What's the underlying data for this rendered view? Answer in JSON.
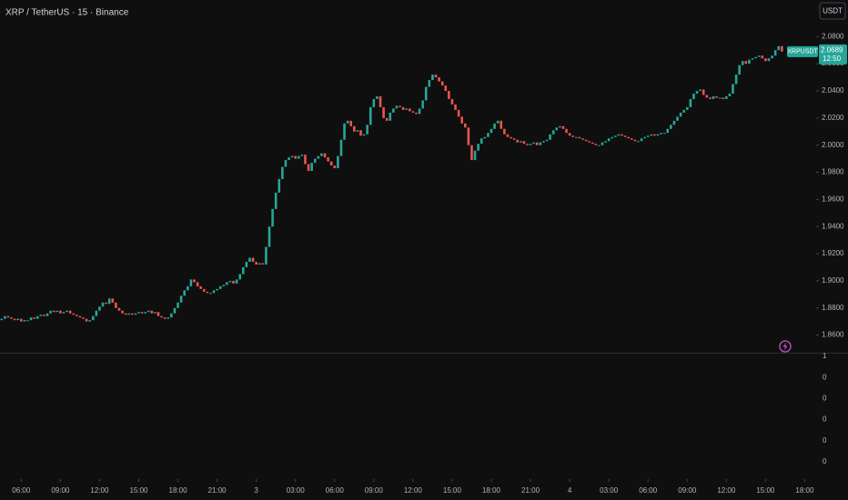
{
  "chart_data": {
    "type": "candlestick",
    "title": "XRP / TetherUS · 15 · Binance",
    "currency_button": "USDT",
    "symbol": "XRPUSDT",
    "last_price": 2.0689,
    "countdown": "12:50",
    "up_color": "#26a69a",
    "down_color": "#ef5350",
    "xlim": [
      -0.5,
      249.5
    ],
    "xticks": [
      {
        "value": 6,
        "label": "06:00"
      },
      {
        "value": 18,
        "label": "09:00"
      },
      {
        "value": 30,
        "label": "12:00"
      },
      {
        "value": 42,
        "label": "15:00"
      },
      {
        "value": 54,
        "label": "18:00"
      },
      {
        "value": 66,
        "label": "21:00"
      },
      {
        "value": 78,
        "label": "3"
      },
      {
        "value": 90,
        "label": "03:00"
      },
      {
        "value": 102,
        "label": "06:00"
      },
      {
        "value": 114,
        "label": "09:00"
      },
      {
        "value": 126,
        "label": "12:00"
      },
      {
        "value": 138,
        "label": "15:00"
      },
      {
        "value": 150,
        "label": "18:00"
      },
      {
        "value": 162,
        "label": "21:00"
      },
      {
        "value": 174,
        "label": "4"
      },
      {
        "value": 186,
        "label": "03:00"
      },
      {
        "value": 198,
        "label": "06:00"
      },
      {
        "value": 210,
        "label": "09:00"
      },
      {
        "value": 222,
        "label": "12:00"
      },
      {
        "value": 234,
        "label": "15:00"
      },
      {
        "value": 246,
        "label": "18:00"
      }
    ],
    "ylim": [
      1.847,
      2.107
    ],
    "yticks": [
      {
        "value": 2.08,
        "label": "2.0800"
      },
      {
        "value": 2.06,
        "label": "2.0600"
      },
      {
        "value": 2.04,
        "label": "2.0400"
      },
      {
        "value": 2.02,
        "label": "2.0200"
      },
      {
        "value": 2.0,
        "label": "2.0000"
      },
      {
        "value": 1.98,
        "label": "1.9800"
      },
      {
        "value": 1.96,
        "label": "1.9600"
      },
      {
        "value": 1.94,
        "label": "1.9400"
      },
      {
        "value": 1.92,
        "label": "1.9200"
      },
      {
        "value": 1.9,
        "label": "1.9000"
      },
      {
        "value": 1.88,
        "label": "1.8800"
      },
      {
        "value": 1.86,
        "label": "1.8600"
      }
    ],
    "open": [
      1.871,
      1.872,
      1.874,
      1.873,
      1.872,
      1.871,
      1.872,
      1.87,
      1.871,
      1.871,
      1.873,
      1.872,
      1.874,
      1.875,
      1.874,
      1.876,
      1.878,
      1.877,
      1.878,
      1.876,
      1.877,
      1.878,
      1.876,
      1.875,
      1.874,
      1.873,
      1.872,
      1.87,
      1.871,
      1.874,
      1.878,
      1.881,
      1.884,
      1.883,
      1.887,
      1.884,
      1.88,
      1.878,
      1.876,
      1.875,
      1.876,
      1.875,
      1.876,
      1.877,
      1.876,
      1.877,
      1.878,
      1.876,
      1.877,
      1.874,
      1.873,
      1.872,
      1.873,
      1.876,
      1.88,
      1.884,
      1.889,
      1.893,
      1.896,
      1.901,
      1.899,
      1.896,
      1.894,
      1.892,
      1.891,
      1.891,
      1.893,
      1.894,
      1.896,
      1.897,
      1.899,
      1.9,
      1.898,
      1.901,
      1.905,
      1.91,
      1.914,
      1.917,
      1.914,
      1.912,
      1.913,
      1.912,
      1.925,
      1.94,
      1.953,
      1.965,
      1.975,
      1.984,
      1.989,
      1.991,
      1.992,
      1.99,
      1.992,
      1.993,
      1.986,
      1.981,
      1.987,
      1.99,
      1.992,
      1.994,
      1.991,
      1.988,
      1.985,
      1.983,
      1.992,
      2.004,
      2.016,
      2.018,
      2.014,
      2.01,
      2.011,
      2.007,
      2.008,
      2.015,
      2.028,
      2.034,
      2.036,
      2.028,
      2.02,
      2.018,
      2.024,
      2.027,
      2.029,
      2.028,
      2.026,
      2.027,
      2.025,
      2.024,
      2.023,
      2.027,
      2.033,
      2.043,
      2.048,
      2.052,
      2.05,
      2.047,
      2.044,
      2.04,
      2.034,
      2.03,
      2.026,
      2.021,
      2.016,
      2.013,
      2.0,
      1.989,
      1.996,
      2.001,
      2.005,
      2.006,
      2.009,
      2.012,
      2.016,
      2.018,
      2.012,
      2.008,
      2.006,
      2.005,
      2.004,
      2.002,
      2.003,
      2.001,
      2.0,
      2.001,
      2.002,
      2.0,
      2.002,
      2.003,
      2.004,
      2.008,
      2.011,
      2.013,
      2.014,
      2.012,
      2.009,
      2.007,
      2.006,
      2.006,
      2.005,
      2.004,
      2.003,
      2.002,
      2.001,
      2.0,
      2.0,
      2.002,
      2.003,
      2.005,
      2.006,
      2.007,
      2.008,
      2.007,
      2.006,
      2.005,
      2.004,
      2.003,
      2.003,
      2.005,
      2.006,
      2.007,
      2.008,
      2.007,
      2.008,
      2.009,
      2.009,
      2.012,
      2.015,
      2.018,
      2.021,
      2.024,
      2.026,
      2.028,
      2.034,
      2.038,
      2.04,
      2.041,
      2.037,
      2.035,
      2.034,
      2.036,
      2.035,
      2.035,
      2.034,
      2.036,
      2.038,
      2.045,
      2.052,
      2.059,
      2.062,
      2.06,
      2.063,
      2.064,
      2.065,
      2.066,
      2.064,
      2.062,
      2.064,
      2.066,
      2.07,
      2.073
    ],
    "close": [
      1.872,
      1.874,
      1.873,
      1.872,
      1.871,
      1.872,
      1.87,
      1.871,
      1.871,
      1.873,
      1.872,
      1.874,
      1.875,
      1.874,
      1.876,
      1.878,
      1.877,
      1.878,
      1.876,
      1.877,
      1.878,
      1.876,
      1.875,
      1.874,
      1.873,
      1.872,
      1.87,
      1.871,
      1.874,
      1.878,
      1.881,
      1.884,
      1.883,
      1.887,
      1.884,
      1.88,
      1.878,
      1.876,
      1.875,
      1.876,
      1.875,
      1.876,
      1.877,
      1.876,
      1.877,
      1.878,
      1.876,
      1.877,
      1.874,
      1.873,
      1.872,
      1.873,
      1.876,
      1.88,
      1.884,
      1.889,
      1.893,
      1.896,
      1.901,
      1.899,
      1.896,
      1.894,
      1.892,
      1.891,
      1.891,
      1.893,
      1.894,
      1.896,
      1.897,
      1.899,
      1.9,
      1.898,
      1.901,
      1.905,
      1.91,
      1.914,
      1.917,
      1.914,
      1.912,
      1.913,
      1.912,
      1.925,
      1.94,
      1.953,
      1.965,
      1.975,
      1.984,
      1.989,
      1.991,
      1.992,
      1.99,
      1.992,
      1.993,
      1.986,
      1.981,
      1.987,
      1.99,
      1.992,
      1.994,
      1.991,
      1.988,
      1.985,
      1.983,
      1.992,
      2.004,
      2.016,
      2.018,
      2.014,
      2.01,
      2.011,
      2.007,
      2.008,
      2.015,
      2.028,
      2.034,
      2.036,
      2.028,
      2.02,
      2.018,
      2.024,
      2.027,
      2.029,
      2.028,
      2.026,
      2.027,
      2.025,
      2.024,
      2.023,
      2.027,
      2.033,
      2.043,
      2.048,
      2.052,
      2.05,
      2.047,
      2.044,
      2.04,
      2.034,
      2.03,
      2.026,
      2.021,
      2.016,
      2.013,
      2.0,
      1.989,
      1.996,
      2.001,
      2.005,
      2.006,
      2.009,
      2.012,
      2.016,
      2.018,
      2.012,
      2.008,
      2.006,
      2.005,
      2.004,
      2.002,
      2.003,
      2.001,
      2.0,
      2.001,
      2.002,
      2.0,
      2.002,
      2.003,
      2.004,
      2.008,
      2.011,
      2.013,
      2.014,
      2.012,
      2.009,
      2.007,
      2.006,
      2.006,
      2.005,
      2.004,
      2.003,
      2.002,
      2.001,
      2.0,
      2.0,
      2.002,
      2.003,
      2.005,
      2.006,
      2.007,
      2.008,
      2.007,
      2.006,
      2.005,
      2.004,
      2.003,
      2.003,
      2.005,
      2.006,
      2.007,
      2.008,
      2.007,
      2.008,
      2.009,
      2.009,
      2.012,
      2.015,
      2.018,
      2.021,
      2.024,
      2.026,
      2.028,
      2.034,
      2.038,
      2.04,
      2.041,
      2.037,
      2.035,
      2.034,
      2.036,
      2.035,
      2.035,
      2.034,
      2.036,
      2.038,
      2.045,
      2.052,
      2.059,
      2.062,
      2.06,
      2.063,
      2.064,
      2.065,
      2.066,
      2.064,
      2.062,
      2.064,
      2.066,
      2.07,
      2.073,
      2.069
    ]
  },
  "indicator_pane": {
    "labels": [
      "1",
      "0",
      "0",
      "0",
      "0",
      "0"
    ]
  }
}
